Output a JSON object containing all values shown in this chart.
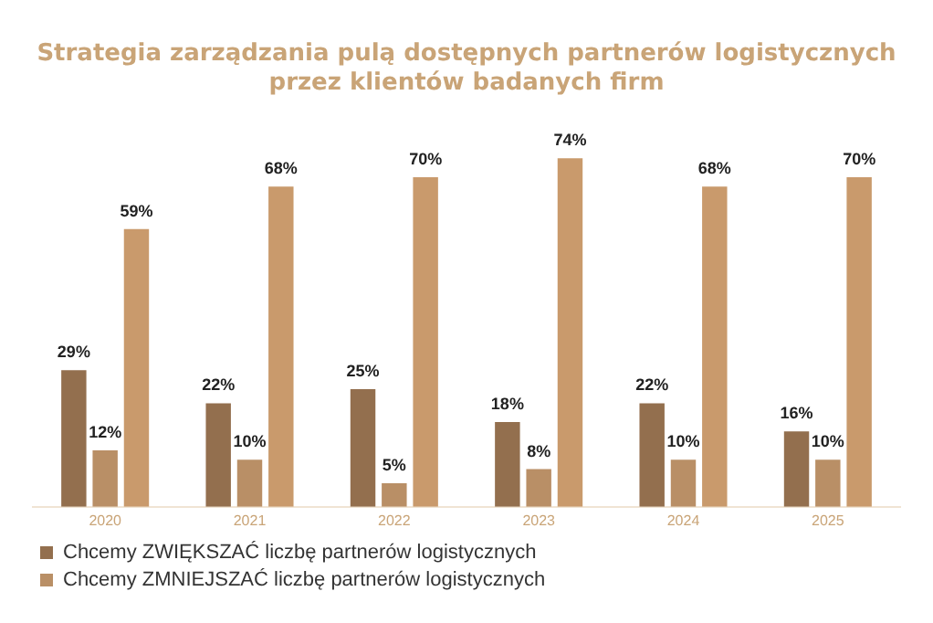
{
  "chart_data": {
    "type": "bar",
    "title": "Strategia zarządzania pulą dostępnych partnerów logistycznych przez klientów badanych firm",
    "categories": [
      "2020",
      "2021",
      "2022",
      "2023",
      "2024",
      "2025"
    ],
    "series": [
      {
        "name": "Chcemy ZWIĘKSZAĆ liczbę partnerów logistycznych",
        "color": "#936f4e",
        "values": [
          29,
          22,
          25,
          18,
          22,
          16
        ],
        "value_labels": [
          "29%",
          "22%",
          "25%",
          "18%",
          "22%",
          "16%"
        ]
      },
      {
        "name": "Chcemy ZMNIEJSZAĆ liczbę partnerów logistycznych",
        "color": "#b98f66",
        "values": [
          12,
          10,
          5,
          8,
          10,
          10
        ],
        "value_labels": [
          "12%",
          "10%",
          "5%",
          "8%",
          "10%",
          "10%"
        ]
      },
      {
        "color": "#c99a6c",
        "values": [
          59,
          68,
          70,
          74,
          68,
          70
        ],
        "value_labels": [
          "59%",
          "68%",
          "70%",
          "74%",
          "68%",
          "70%"
        ]
      }
    ],
    "legend": "bottom",
    "grid": false,
    "tick_labels": "x"
  }
}
